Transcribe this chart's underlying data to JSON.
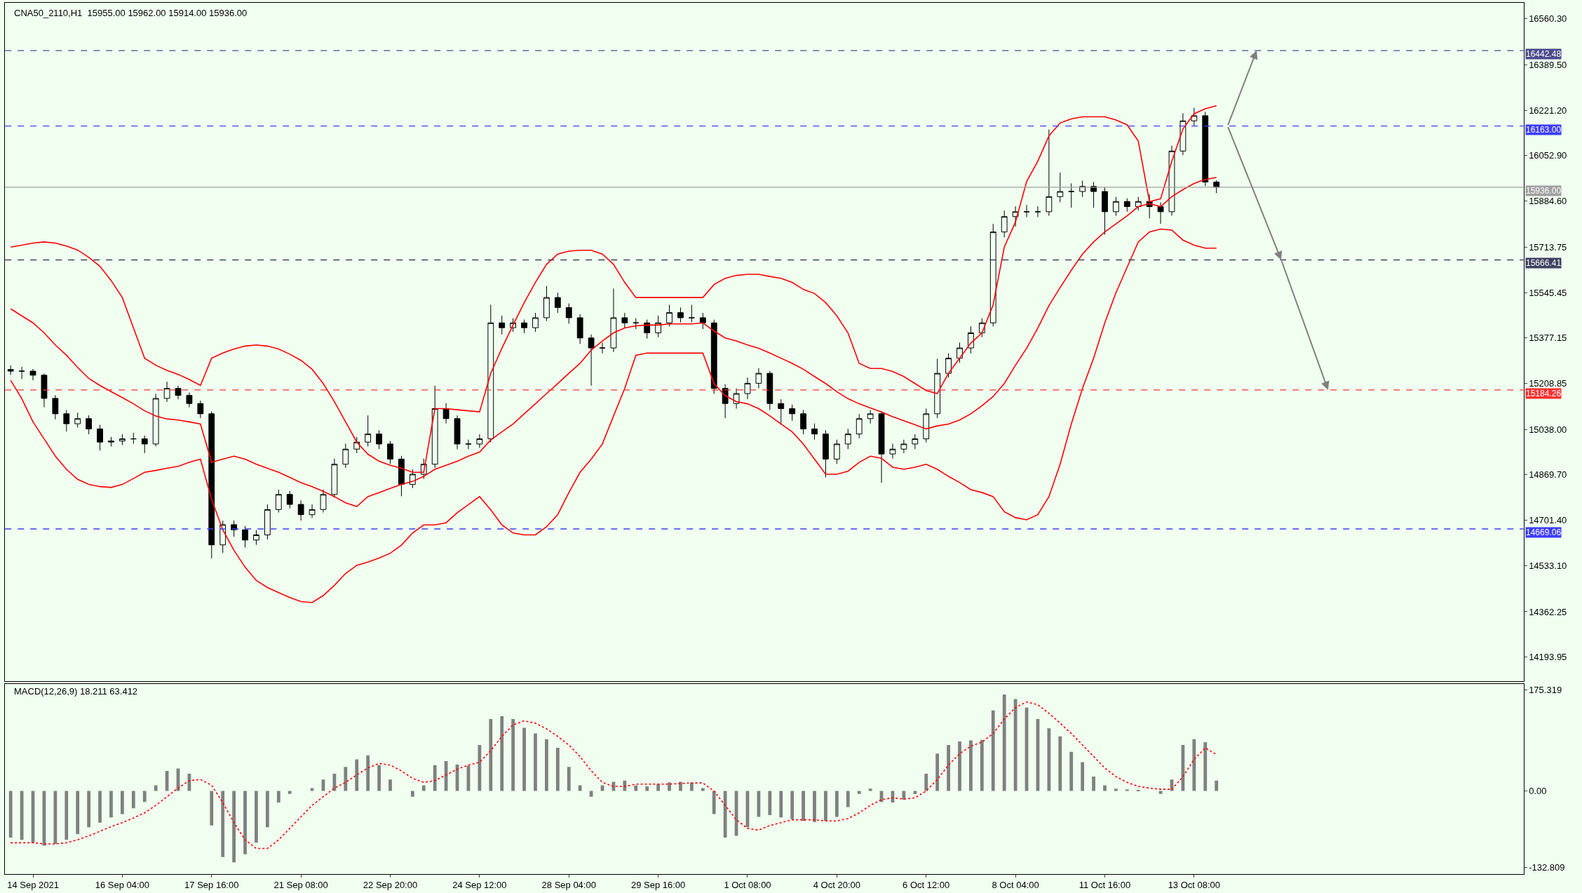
{
  "chart_data": [
    {
      "type": "candlestick",
      "title": "CNA50_2110,H1  15955.00 15962.00 15914.00 15936.00",
      "color": "#000000",
      "categories": [
        null,
        null,
        null,
        null,
        null,
        null,
        null,
        null,
        null,
        null,
        null,
        null,
        null,
        null,
        null,
        null,
        null,
        null,
        null,
        null,
        null,
        null,
        null,
        null,
        null,
        null,
        null,
        null,
        null,
        null,
        null,
        null,
        null,
        null,
        null,
        null,
        null,
        null,
        null,
        null,
        null,
        null,
        null,
        null,
        null,
        null,
        null,
        null,
        null,
        null,
        null,
        null,
        null,
        null,
        null,
        null,
        null,
        null,
        null,
        null,
        null,
        null,
        null,
        null,
        null,
        null,
        null,
        null,
        null,
        null,
        null,
        null,
        null,
        null,
        null,
        null,
        null,
        null,
        null,
        null,
        null,
        null,
        null,
        null,
        null,
        null,
        null,
        null,
        null,
        null,
        null,
        null,
        null,
        null,
        null,
        null,
        null,
        null,
        null,
        null,
        null,
        null,
        null,
        null,
        null,
        null,
        null,
        null,
        null,
        null,
        null,
        null,
        null,
        null,
        null,
        null,
        null,
        null,
        null,
        null,
        null,
        null,
        null,
        null,
        null,
        null,
        null,
        null,
        null,
        null,
        null,
        null,
        null,
        null,
        null,
        null
      ],
      "ohlc": [
        [
          15260,
          15275,
          15240,
          15254
        ],
        [
          15254,
          15270,
          15225,
          15254
        ],
        [
          15254,
          15262,
          15220,
          15239
        ],
        [
          15239,
          15245,
          15120,
          15153
        ],
        [
          15153,
          15165,
          15075,
          15096
        ],
        [
          15096,
          15110,
          15030,
          15059
        ],
        [
          15059,
          15100,
          15045,
          15078
        ],
        [
          15078,
          15090,
          15020,
          15040
        ],
        [
          15040,
          15055,
          14960,
          14991
        ],
        [
          14991,
          15010,
          14975,
          14995
        ],
        [
          14995,
          15020,
          14980,
          15003
        ],
        [
          15003,
          15025,
          14985,
          15003
        ],
        [
          15003,
          15015,
          14950,
          14984
        ],
        [
          14984,
          15170,
          14975,
          15153
        ],
        [
          15153,
          15215,
          15140,
          15190
        ],
        [
          15190,
          15200,
          15150,
          15164
        ],
        [
          15164,
          15175,
          15120,
          15134
        ],
        [
          15134,
          15145,
          15080,
          15096
        ],
        [
          15096,
          15105,
          14560,
          14610
        ],
        [
          14610,
          14700,
          14580,
          14685
        ],
        [
          14685,
          14700,
          14640,
          14666
        ],
        [
          14666,
          14680,
          14600,
          14628
        ],
        [
          14628,
          14665,
          14610,
          14647
        ],
        [
          14647,
          14760,
          14630,
          14741
        ],
        [
          14741,
          14815,
          14730,
          14797
        ],
        [
          14797,
          14810,
          14745,
          14760
        ],
        [
          14760,
          14775,
          14700,
          14722
        ],
        [
          14722,
          14760,
          14710,
          14741
        ],
        [
          14741,
          14815,
          14730,
          14797
        ],
        [
          14797,
          14930,
          14785,
          14909
        ],
        [
          14909,
          14985,
          14895,
          14965
        ],
        [
          14965,
          15010,
          14950,
          14991
        ],
        [
          14991,
          15090,
          14975,
          15021
        ],
        [
          15021,
          15035,
          14965,
          14984
        ],
        [
          14984,
          14995,
          14910,
          14928
        ],
        [
          14928,
          14940,
          14790,
          14834
        ],
        [
          14834,
          14890,
          14820,
          14872
        ],
        [
          14872,
          14930,
          14855,
          14909
        ],
        [
          14909,
          15200,
          14895,
          15115
        ],
        [
          15115,
          15135,
          15060,
          15078
        ],
        [
          15078,
          15090,
          14965,
          14984
        ],
        [
          14984,
          15000,
          14965,
          14984
        ],
        [
          14984,
          15020,
          14970,
          15003
        ],
        [
          15003,
          15500,
          14990,
          15433
        ],
        [
          15433,
          15460,
          15390,
          15415
        ],
        [
          15415,
          15450,
          15400,
          15433
        ],
        [
          15433,
          15445,
          15395,
          15415
        ],
        [
          15415,
          15470,
          15400,
          15452
        ],
        [
          15452,
          15570,
          15440,
          15527
        ],
        [
          15527,
          15545,
          15470,
          15490
        ],
        [
          15490,
          15505,
          15430,
          15452
        ],
        [
          15452,
          15465,
          15355,
          15377
        ],
        [
          15377,
          15390,
          15200,
          15340
        ],
        [
          15340,
          15360,
          15320,
          15340
        ],
        [
          15340,
          15560,
          15325,
          15452
        ],
        [
          15452,
          15470,
          15415,
          15433
        ],
        [
          15433,
          15450,
          15410,
          15433
        ],
        [
          15433,
          15445,
          15375,
          15396
        ],
        [
          15396,
          15460,
          15380,
          15433
        ],
        [
          15433,
          15500,
          15420,
          15471
        ],
        [
          15471,
          15490,
          15435,
          15452
        ],
        [
          15452,
          15500,
          15435,
          15452
        ],
        [
          15452,
          15470,
          15410,
          15433
        ],
        [
          15433,
          15445,
          15170,
          15190
        ],
        [
          15190,
          15205,
          15080,
          15134
        ],
        [
          15134,
          15190,
          15115,
          15171
        ],
        [
          15171,
          15230,
          15150,
          15209
        ],
        [
          15209,
          15265,
          15190,
          15246
        ],
        [
          15246,
          15255,
          15110,
          15134
        ],
        [
          15134,
          15150,
          15060,
          15115
        ],
        [
          15115,
          15130,
          15070,
          15096
        ],
        [
          15096,
          15110,
          15020,
          15040
        ],
        [
          15040,
          15060,
          15000,
          15021
        ],
        [
          15021,
          15035,
          14860,
          14928
        ],
        [
          14928,
          15000,
          14910,
          14984
        ],
        [
          14984,
          15040,
          14965,
          15021
        ],
        [
          15021,
          15095,
          15005,
          15078
        ],
        [
          15078,
          15110,
          15060,
          15096
        ],
        [
          15096,
          15105,
          14840,
          14947
        ],
        [
          14947,
          14985,
          14930,
          14965
        ],
        [
          14965,
          15000,
          14950,
          14984
        ],
        [
          14984,
          15020,
          14965,
          15003
        ],
        [
          15003,
          15115,
          14990,
          15096
        ],
        [
          15096,
          15300,
          15080,
          15246
        ],
        [
          15246,
          15320,
          15230,
          15302
        ],
        [
          15302,
          15360,
          15285,
          15340
        ],
        [
          15340,
          15420,
          15320,
          15396
        ],
        [
          15396,
          15450,
          15380,
          15433
        ],
        [
          15433,
          15800,
          15420,
          15770
        ],
        [
          15770,
          15850,
          15750,
          15827
        ],
        [
          15827,
          15865,
          15790,
          15845
        ],
        [
          15845,
          15870,
          15825,
          15845
        ],
        [
          15845,
          15865,
          15825,
          15845
        ],
        [
          15845,
          16150,
          15830,
          15901
        ],
        [
          15901,
          15990,
          15880,
          15920
        ],
        [
          15920,
          15950,
          15860,
          15920
        ],
        [
          15920,
          15960,
          15900,
          15939
        ],
        [
          15939,
          15955,
          15860,
          15920
        ],
        [
          15920,
          15935,
          15760,
          15845
        ],
        [
          15845,
          15900,
          15830,
          15883
        ],
        [
          15883,
          15895,
          15845,
          15864
        ],
        [
          15864,
          15900,
          15850,
          15883
        ],
        [
          15883,
          15910,
          15820,
          15864
        ],
        [
          15864,
          15880,
          15800,
          15845
        ],
        [
          15845,
          16090,
          15830,
          16070
        ],
        [
          16070,
          16210,
          16055,
          16182
        ],
        [
          16182,
          16230,
          16165,
          16201
        ],
        [
          16201,
          16215,
          15940,
          15955
        ],
        [
          15955,
          15962,
          15914,
          15936
        ],
        null,
        null,
        null,
        null,
        null,
        null,
        null,
        null,
        null,
        null,
        null,
        null,
        null,
        null,
        null,
        null,
        null,
        null,
        null,
        null,
        null,
        null,
        null,
        null,
        null,
        null,
        null
      ],
      "series": [
        {
          "type": "line",
          "color": "#ff0000",
          "values": [
            15714,
            15721,
            15729,
            15733,
            15729,
            15718,
            15703,
            15676,
            15643,
            15590,
            15527,
            15414,
            15302,
            15276,
            15257,
            15242,
            15223,
            15201,
            15302,
            15321,
            15336,
            15347,
            15351,
            15347,
            15336,
            15317,
            15294,
            15261,
            15208,
            15141,
            15066,
            14991,
            14946,
            14920,
            14905,
            14894,
            14879,
            14879,
            15115,
            15115,
            15111,
            15107,
            15103,
            15246,
            15339,
            15425,
            15508,
            15583,
            15650,
            15688,
            15699,
            15702,
            15702,
            15688,
            15650,
            15583,
            15527,
            15527,
            15527,
            15527,
            15527,
            15527,
            15527,
            15575,
            15598,
            15609,
            15613,
            15613,
            15605,
            15598,
            15583,
            15557,
            15542,
            15508,
            15459,
            15396,
            15283,
            15264,
            15264,
            15253,
            15234,
            15208,
            15182,
            15171,
            15246,
            15302,
            15358,
            15396,
            15500,
            15714,
            15807,
            15957,
            16032,
            16126,
            16174,
            16189,
            16197,
            16197,
            16197,
            16185,
            16167,
            16107,
            15882,
            15893,
            16032,
            16152,
            16208,
            16227,
            16238,
            null,
            null,
            null,
            null,
            null,
            null,
            null,
            null,
            null,
            null,
            null,
            null,
            null,
            null,
            null,
            null,
            null,
            null,
            null,
            null,
            null,
            null,
            null,
            null,
            null,
            null,
            null
          ]
        },
        {
          "type": "line",
          "color": "#ff0000",
          "values": [
            15485,
            15459,
            15433,
            15396,
            15351,
            15313,
            15268,
            15227,
            15201,
            15178,
            15156,
            15133,
            15107,
            15088,
            15077,
            15073,
            15066,
            15058,
            14916,
            14928,
            14939,
            14928,
            14909,
            14894,
            14879,
            14860,
            14841,
            14826,
            14808,
            14789,
            14766,
            14752,
            14789,
            14804,
            14819,
            14834,
            14845,
            14864,
            14890,
            14905,
            14920,
            14939,
            14954,
            14999,
            15029,
            15058,
            15096,
            15133,
            15171,
            15208,
            15246,
            15283,
            15332,
            15366,
            15396,
            15414,
            15422,
            15425,
            15425,
            15429,
            15429,
            15429,
            15433,
            15403,
            15377,
            15366,
            15351,
            15339,
            15321,
            15302,
            15283,
            15261,
            15234,
            15208,
            15178,
            15152,
            15133,
            15118,
            15103,
            15085,
            15070,
            15055,
            15040,
            15051,
            15058,
            15073,
            15096,
            15126,
            15160,
            15208,
            15276,
            15339,
            15414,
            15497,
            15564,
            15628,
            15688,
            15733,
            15770,
            15800,
            15830,
            15864,
            15875,
            15864,
            15901,
            15927,
            15950,
            15965,
            15972,
            null,
            null,
            null,
            null,
            null,
            null,
            null,
            null,
            null,
            null,
            null,
            null,
            null,
            null,
            null,
            null,
            null,
            null,
            null,
            null,
            null,
            null,
            null,
            null,
            null,
            null,
            null
          ]
        },
        {
          "type": "line",
          "color": "#ff0000",
          "values": [
            15220,
            15152,
            15066,
            15003,
            14939,
            14890,
            14853,
            14834,
            14826,
            14823,
            14834,
            14856,
            14879,
            14886,
            14894,
            14901,
            14916,
            14928,
            14778,
            14666,
            14590,
            14527,
            14478,
            14452,
            14433,
            14415,
            14400,
            14396,
            14422,
            14460,
            14504,
            14534,
            14546,
            14561,
            14579,
            14609,
            14654,
            14684,
            14684,
            14692,
            14729,
            14759,
            14789,
            14740,
            14684,
            14654,
            14647,
            14647,
            14677,
            14722,
            14804,
            14879,
            14928,
            14984,
            15088,
            15190,
            15313,
            15321,
            15321,
            15321,
            15321,
            15321,
            15321,
            15208,
            15163,
            15141,
            15133,
            15115,
            15088,
            15058,
            15029,
            14984,
            14928,
            14872,
            14872,
            14883,
            14916,
            14939,
            14931,
            14898,
            14890,
            14898,
            14909,
            14890,
            14864,
            14841,
            14815,
            14804,
            14789,
            14733,
            14711,
            14703,
            14722,
            14789,
            14909,
            15058,
            15190,
            15302,
            15433,
            15545,
            15639,
            15733,
            15770,
            15781,
            15777,
            15740,
            15721,
            15710,
            15710,
            null,
            null,
            null,
            null,
            null,
            null,
            null,
            null,
            null,
            null,
            null,
            null,
            null,
            null,
            null,
            null,
            null,
            null,
            null,
            null,
            null,
            null,
            null,
            null,
            null,
            null,
            null
          ]
        }
      ],
      "ref_lines": [
        {
          "axis": "y",
          "value": 16442.48,
          "label": "16442.48",
          "color": "#4b4b8c",
          "line_style": "dashed"
        },
        {
          "axis": "y",
          "value": 16163.0,
          "label": "16163.00",
          "color": "#3c3cff",
          "line_style": "dashed"
        },
        {
          "axis": "y",
          "value": 15936.0,
          "label": "15936.00",
          "color": "#a0a0a0",
          "line_style": "solid"
        },
        {
          "axis": "y",
          "value": 15666.41,
          "label": "15666.41",
          "color": "#404060",
          "line_style": "dashed"
        },
        {
          "axis": "y",
          "value": 15184.26,
          "label": "15184.26",
          "color": "#ff3030",
          "line_style": "dashed"
        },
        {
          "axis": "y",
          "value": 14669.06,
          "label": "14669.06",
          "color": "#3c3cff",
          "line_style": "dashed"
        }
      ],
      "ylim": [
        14104,
        16620
      ],
      "yticks": [
        {
          "value": 16560.3,
          "label": "16560.30"
        },
        {
          "value": 16389.5,
          "label": "16389.50"
        },
        {
          "value": 16221.2,
          "label": "16221.20"
        },
        {
          "value": 16052.9,
          "label": "16052.90"
        },
        {
          "value": 15884.6,
          "label": "15884.60"
        },
        15713.75,
        15545.45,
        15377.15,
        15208.85,
        {
          "value": 15038,
          "label": "15038.00"
        },
        {
          "value": 14869.7,
          "label": "14869.70"
        },
        {
          "value": 14701.4,
          "label": "14701.40"
        },
        {
          "value": 14533.1,
          "label": "14533.10"
        },
        14362.25,
        14193.95
      ],
      "tick_labels": "y",
      "grid": false,
      "legend": false
    },
    {
      "type": "bar",
      "title": "MACD(12,26,9) 18.211 63.412",
      "categories": [
        null,
        null,
        "14 Sep 2021",
        null,
        null,
        null,
        null,
        null,
        null,
        null,
        "16 Sep 04:00",
        null,
        null,
        null,
        null,
        null,
        null,
        null,
        "17 Sep 16:00",
        null,
        null,
        null,
        null,
        null,
        null,
        null,
        "21 Sep 08:00",
        null,
        null,
        null,
        null,
        null,
        null,
        null,
        "22 Sep 20:00",
        null,
        null,
        null,
        null,
        null,
        null,
        null,
        "24 Sep 12:00",
        null,
        null,
        null,
        null,
        null,
        null,
        null,
        "28 Sep 04:00",
        null,
        null,
        null,
        null,
        null,
        null,
        null,
        "29 Sep 16:00",
        null,
        null,
        null,
        null,
        null,
        null,
        null,
        "1 Oct 08:00",
        null,
        null,
        null,
        null,
        null,
        null,
        null,
        "4 Oct 20:00",
        null,
        null,
        null,
        null,
        null,
        null,
        null,
        "6 Oct 12:00",
        null,
        null,
        null,
        null,
        null,
        null,
        null,
        "8 Oct 04:00",
        null,
        null,
        null,
        null,
        null,
        null,
        null,
        "11 Oct 16:00",
        null,
        null,
        null,
        null,
        null,
        null,
        null,
        "13 Oct 08:00",
        null,
        null,
        null,
        null,
        null,
        null,
        null,
        null,
        null,
        null,
        null,
        null,
        null,
        null,
        null,
        null,
        null,
        null,
        null,
        null,
        null,
        null,
        null,
        null,
        null,
        null,
        null,
        null,
        null
      ],
      "series": [
        {
          "type": "bar",
          "color": "#808080",
          "values": [
            -81,
            -85,
            -90,
            -95,
            -92,
            -85,
            -75,
            -63,
            -55,
            -46,
            -40,
            -30,
            -19,
            10,
            35,
            39,
            30,
            0,
            -60,
            -115,
            -124,
            -110,
            -90,
            -63,
            -20,
            -5,
            0,
            5,
            20,
            30,
            42,
            55,
            62,
            45,
            20,
            0,
            -10,
            10,
            45,
            52,
            46,
            44,
            80,
            125,
            130,
            125,
            110,
            100,
            90,
            75,
            42,
            10,
            -10,
            10,
            16,
            18,
            10,
            8,
            12,
            15,
            16,
            14,
            5,
            -40,
            -81,
            -78,
            -63,
            -45,
            -42,
            -46,
            -49,
            -52,
            -54,
            -52,
            -45,
            -28,
            -5,
            4,
            -19,
            -20,
            -15,
            -5,
            30,
            65,
            80,
            86,
            88,
            89,
            140,
            168,
            160,
            145,
            125,
            109,
            95,
            68,
            50,
            25,
            10,
            4,
            3,
            2,
            0,
            -5,
            20,
            80,
            90,
            85,
            18.211,
            null,
            null,
            null,
            null,
            null,
            null,
            null,
            null,
            null,
            null,
            null,
            null,
            null,
            null,
            null,
            null,
            null,
            null,
            null,
            null,
            null,
            null,
            null,
            null,
            null,
            null,
            null
          ]
        },
        {
          "type": "line",
          "color": "#ff0000",
          "line_style": "dotted",
          "values": [
            -90,
            -90,
            -90,
            -92,
            -92,
            -90,
            -85,
            -78,
            -70,
            -62,
            -55,
            -47,
            -38,
            -25,
            -10,
            5,
            18,
            20,
            10,
            -20,
            -55,
            -85,
            -100,
            -100,
            -85,
            -65,
            -45,
            -25,
            -10,
            5,
            15,
            28,
            40,
            48,
            45,
            35,
            22,
            15,
            18,
            28,
            38,
            45,
            50,
            70,
            95,
            115,
            122,
            118,
            108,
            95,
            80,
            60,
            35,
            15,
            8,
            8,
            12,
            12,
            12,
            12,
            13,
            14,
            14,
            0,
            -25,
            -50,
            -65,
            -68,
            -60,
            -55,
            -50,
            -50,
            -50,
            -52,
            -52,
            -48,
            -38,
            -25,
            -15,
            -12,
            -14,
            -12,
            0,
            20,
            45,
            65,
            78,
            85,
            100,
            125,
            145,
            155,
            150,
            135,
            118,
            100,
            80,
            60,
            40,
            25,
            15,
            8,
            5,
            3,
            3,
            25,
            55,
            75,
            63.412,
            null,
            null,
            null,
            null,
            null,
            null,
            null,
            null,
            null,
            null,
            null,
            null,
            null,
            null,
            null,
            null,
            null,
            null,
            null,
            null,
            null,
            null,
            null,
            null,
            null,
            null,
            null
          ]
        }
      ],
      "ylim": [
        -144,
        186
      ],
      "yticks": [
        175.319,
        {
          "value": 0,
          "label": "0.00"
        },
        -132.809
      ],
      "grid": false,
      "legend": false
    }
  ]
}
